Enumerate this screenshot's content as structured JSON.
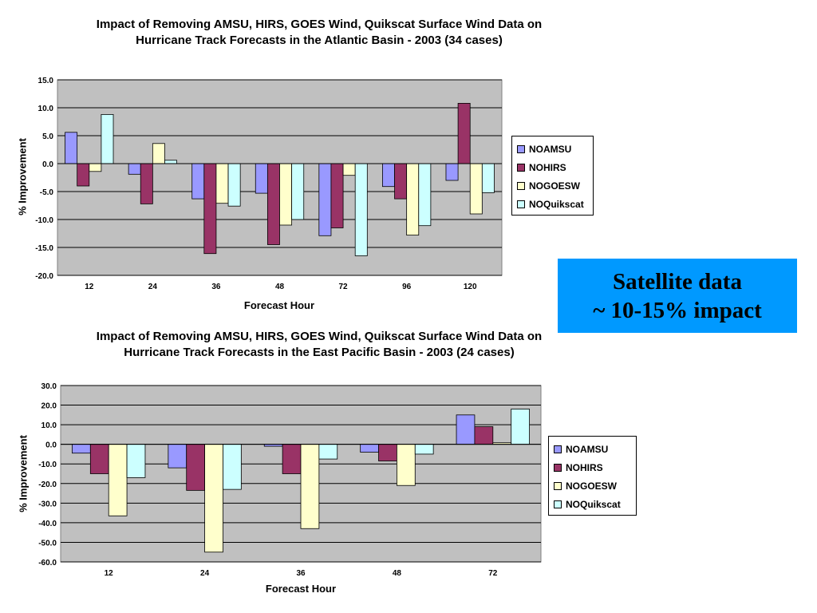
{
  "callout": {
    "line1": "Satellite data",
    "line2": "~ 10-15% impact"
  },
  "colors": {
    "plot_bg": "#c0c0c0",
    "NOAMSU": "#9999ff",
    "NOHIRS": "#993366",
    "NOGOESW": "#ffffcc",
    "NOQuikscat": "#ccffff",
    "callout_bg": "#0099ff"
  },
  "chart_data": [
    {
      "type": "bar",
      "title_line1": "Impact of Removing AMSU, HIRS, GOES Wind, Quikscat Surface Wind Data on",
      "title_line2": "Hurricane Track Forecasts in the Atlantic Basin - 2003 (34 cases)",
      "xlabel": "Forecast Hour",
      "ylabel": "% Improvement",
      "ylim": [
        -20,
        15
      ],
      "ystep": 5,
      "grid": true,
      "legend_position": "right",
      "categories": [
        "12",
        "24",
        "36",
        "48",
        "72",
        "96",
        "120"
      ],
      "series": [
        {
          "name": "NOAMSU",
          "values": [
            5.6,
            -1.9,
            -6.3,
            -5.3,
            -12.9,
            -4.1,
            -3.0
          ]
        },
        {
          "name": "NOHIRS",
          "values": [
            -4.0,
            -7.2,
            -16.1,
            -14.5,
            -11.5,
            -6.3,
            10.8
          ]
        },
        {
          "name": "NOGOESW",
          "values": [
            -1.4,
            3.6,
            -7.1,
            -11.0,
            -2.1,
            -12.8,
            -9.0
          ]
        },
        {
          "name": "NOQuikscat",
          "values": [
            8.8,
            0.6,
            -7.6,
            -10.0,
            -16.5,
            -11.1,
            -5.2
          ]
        }
      ]
    },
    {
      "type": "bar",
      "title_line1": "Impact of Removing AMSU, HIRS, GOES Wind, Quikscat Surface Wind Data on",
      "title_line2": "Hurricane Track Forecasts in the East Pacific Basin - 2003 (24 cases)",
      "xlabel": "Forecast Hour",
      "ylabel": "% Improvement",
      "ylim": [
        -60,
        30
      ],
      "ystep": 10,
      "grid": true,
      "legend_position": "right",
      "categories": [
        "12",
        "24",
        "36",
        "48",
        "72"
      ],
      "series": [
        {
          "name": "NOAMSU",
          "values": [
            -4.5,
            -12.0,
            -1.0,
            -4.0,
            15.0
          ]
        },
        {
          "name": "NOHIRS",
          "values": [
            -15.0,
            -23.5,
            -15.0,
            -8.5,
            9.0
          ]
        },
        {
          "name": "NOGOESW",
          "values": [
            -36.5,
            -55.0,
            -43.0,
            -21.0,
            0.8
          ]
        },
        {
          "name": "NOQuikscat",
          "values": [
            -17.0,
            -23.0,
            -7.5,
            -5.0,
            18.0
          ]
        }
      ]
    }
  ]
}
